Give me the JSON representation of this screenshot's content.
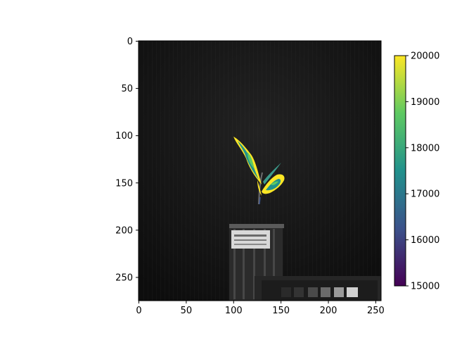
{
  "chart_data": {
    "type": "heatmap",
    "title": "",
    "xlabel": "",
    "ylabel": "",
    "image_size": {
      "width": 256,
      "height": 275
    },
    "xlim": [
      0,
      256
    ],
    "ylim": [
      275,
      0
    ],
    "x_ticks": [
      0,
      50,
      100,
      150,
      200,
      250
    ],
    "y_ticks": [
      0,
      50,
      100,
      150,
      200,
      250
    ],
    "colorbar": {
      "colormap": "viridis",
      "range": [
        15000,
        20000
      ],
      "ticks": [
        15000,
        16000,
        17000,
        18000,
        19000,
        20000
      ]
    },
    "background": "grayscale camera image of a plant seedling in a pot with a label and a gray reference card",
    "overlay": "plant pixels colored by value, mostly 18000–20000"
  },
  "colors": {
    "viridis_stops": [
      "#440154",
      "#3b528b",
      "#21918c",
      "#5ec962",
      "#fde725"
    ],
    "image_bg": "#141414"
  }
}
